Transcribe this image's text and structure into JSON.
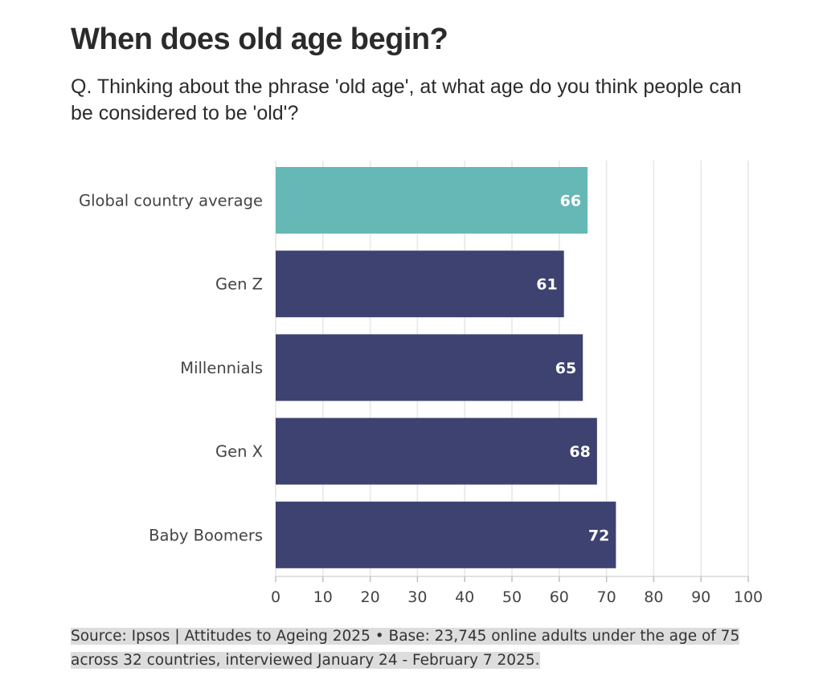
{
  "title": "When does old age begin?",
  "subtitle": "Q. Thinking about the phrase 'old age', at what age do you think people can be considered to be 'old'?",
  "source": "Source: Ipsos | Attitudes to Ageing 2025 • Base: 23,745 online adults under the age of 75 across 32 countries, interviewed January 24 - February 7 2025.",
  "colors": {
    "highlight": "#66b8b6",
    "bar": "#3d4270",
    "grid": "#e6e6e6",
    "label_text": "#ffffff"
  },
  "chart_data": {
    "type": "bar",
    "orientation": "horizontal",
    "categories": [
      "Global country average",
      "Gen Z",
      "Millennials",
      "Gen X",
      "Baby Boomers"
    ],
    "values": [
      66,
      61,
      65,
      68,
      72
    ],
    "highlight_index": 0,
    "xlim": [
      0,
      100
    ],
    "xticks": [
      0,
      10,
      20,
      30,
      40,
      50,
      60,
      70,
      80,
      90,
      100
    ],
    "grid": true,
    "legend": "none"
  }
}
